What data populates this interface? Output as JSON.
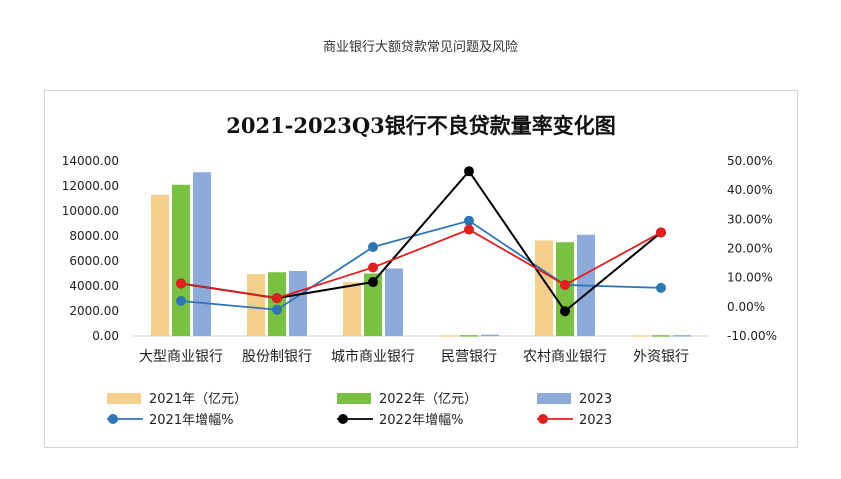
{
  "page": {
    "header": "商业银行大额贷款常见问题及风险"
  },
  "colors": {
    "bar2021": "#f5d08c",
    "bar2022": "#7ac143",
    "bar2023": "#8eaadb",
    "line2021": "#2e75b6",
    "line2022": "#000000",
    "line2023": "#e02020"
  },
  "chart_data": {
    "type": "bar",
    "title": "2021-2023Q3银行不良贷款量率变化图",
    "categories": [
      "大型商业银行",
      "股份制银行",
      "城市商业银行",
      "民营银行",
      "农村商业银行",
      "外资银行"
    ],
    "y_left": {
      "ticks": [
        "14000.00",
        "12000.00",
        "10000.00",
        "8000.00",
        "6000.00",
        "4000.00",
        "2000.00",
        "0.00"
      ],
      "range": [
        0,
        14000
      ]
    },
    "y_right": {
      "ticks": [
        "50.00%",
        "40.00%",
        "30.00%",
        "20.00%",
        "10.00%",
        "0.00%",
        "-10.00%"
      ],
      "range": [
        -10,
        50
      ]
    },
    "bar_series": [
      {
        "name": "2021年（亿元）",
        "values": [
          11300,
          4950,
          4300,
          60,
          7650,
          60
        ]
      },
      {
        "name": "2022年（亿元）",
        "values": [
          12100,
          5100,
          5000,
          70,
          7500,
          65
        ]
      },
      {
        "name": "2023",
        "values": [
          13100,
          5200,
          5400,
          110,
          8100,
          70
        ]
      }
    ],
    "line_series": [
      {
        "name": "2021年增幅%",
        "values": [
          2,
          -1,
          20.5,
          29.5,
          7.5,
          6.5
        ]
      },
      {
        "name": "2022年增幅%",
        "values": [
          8,
          3,
          8.5,
          46.5,
          -1.5,
          25.5
        ]
      },
      {
        "name": "2023",
        "values": [
          8,
          3,
          13.5,
          26.5,
          7.5,
          25.5
        ]
      }
    ],
    "grid": false,
    "legend_position": "bottom"
  }
}
